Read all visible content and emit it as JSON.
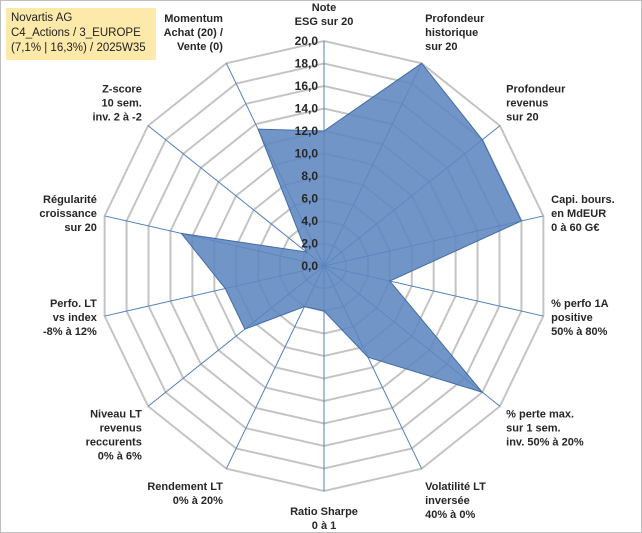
{
  "header": {
    "line1": "Novartis AG",
    "line2": "C4_Actions / 3_EUROPE",
    "line3": "(7,1% | 16,3%) / 2025W35"
  },
  "chart_data": {
    "type": "radar",
    "ylim": [
      0,
      20
    ],
    "tick_step": 2,
    "tick_labels": [
      "0,0",
      "2,0",
      "4,0",
      "6,0",
      "8,0",
      "10,0",
      "12,0",
      "14,0",
      "16,0",
      "18,0",
      "20,0"
    ],
    "categories": [
      "Note ESG sur 20",
      "Profondeur historique sur 20",
      "Profondeur revenus sur 20",
      "Capi. bours. en MdEUR 0 à 60 G€",
      "% perfo 1A positive 50% à 80%",
      "% perte max. sur 1 sem. inv. 50% à 20%",
      "Volatilité LT inversée 40% à 0%",
      "Ratio Sharpe 0 à 1",
      "Rendement LT 0% à 20%",
      "Niveau LT revenus reccurents 0% à 6%",
      "Perfo. LT vs index -8% à 12%",
      "Régularité croissance sur 20",
      "Z-score 10 sem. inv. 2 à -2",
      "Momentum Achat (20) / Vente (0)"
    ],
    "category_lines": [
      [
        "Note",
        "ESG sur 20"
      ],
      [
        "Profondeur",
        "historique",
        "sur 20"
      ],
      [
        "Profondeur",
        "revenus",
        "sur 20"
      ],
      [
        "Capi. bours.",
        "en MdEUR",
        "0 à 60 G€"
      ],
      [
        "% perfo 1A",
        "positive",
        "50% à 80%"
      ],
      [
        "% perte max.",
        "sur 1 sem.",
        "inv. 50% à 20%"
      ],
      [
        "Volatilité LT",
        "inversée",
        "40% à 0%"
      ],
      [
        "Ratio Sharpe",
        "0 à 1"
      ],
      [
        "Rendement LT",
        "0% à 20%"
      ],
      [
        "Niveau LT",
        "revenus",
        "reccurents",
        "0% à 6%"
      ],
      [
        "Perfo. LT",
        "vs index",
        "-8% à 12%"
      ],
      [
        "Régularité",
        "croissance",
        "sur 20"
      ],
      [
        "Z-score",
        "10 sem.",
        "inv. 2 à -2"
      ],
      [
        "Momentum",
        "Achat (20) /",
        "Vente (0)"
      ]
    ],
    "series": [
      {
        "values": [
          12.0,
          20.0,
          18.0,
          18.0,
          6.0,
          18.0,
          9.0,
          4.0,
          4.0,
          9.0,
          9.0,
          13.0,
          2.0,
          13.5
        ]
      }
    ],
    "colors": {
      "fill": "#5f86c0",
      "stroke": "#416ca8",
      "grid": "#c4c4c4",
      "spoke": "#4f81bd"
    },
    "grid": true
  }
}
